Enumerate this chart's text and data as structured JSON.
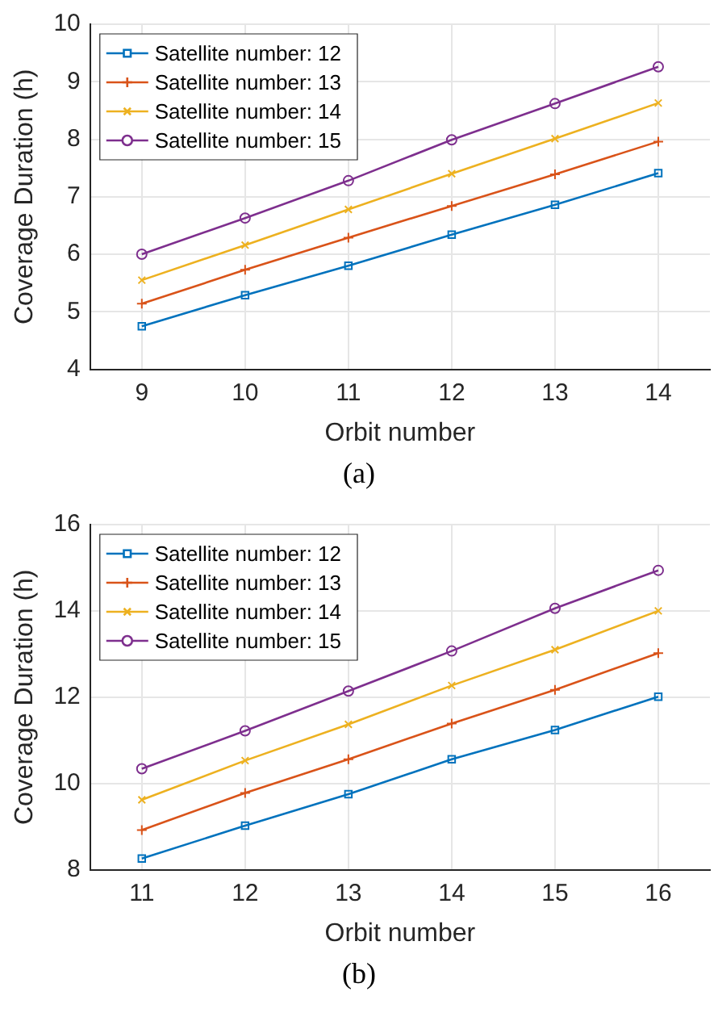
{
  "chart_data": [
    {
      "type": "line",
      "xlabel": "Orbit number",
      "ylabel": "Coverage Duration (h)",
      "annotations": [
        "(a)"
      ],
      "x": [
        9,
        10,
        11,
        12,
        13,
        14
      ],
      "xlim": [
        8.5,
        14.5
      ],
      "xticks": [
        9,
        10,
        11,
        12,
        13,
        14
      ],
      "ylim": [
        4,
        10
      ],
      "yticks": [
        4,
        5,
        6,
        7,
        8,
        9,
        10
      ],
      "grid": true,
      "legend": "top left",
      "series": [
        {
          "name": "Satellite number: 12",
          "color": "#0072bd",
          "marker": "square",
          "values": [
            4.75,
            5.29,
            5.8,
            6.34,
            6.86,
            7.41
          ]
        },
        {
          "name": "Satellite number: 13",
          "color": "#d95319",
          "marker": "cross",
          "values": [
            5.14,
            5.73,
            6.29,
            6.84,
            7.39,
            7.96
          ]
        },
        {
          "name": "Satellite number: 14",
          "color": "#edb120",
          "marker": "x",
          "values": [
            5.55,
            6.16,
            6.78,
            7.4,
            8.01,
            8.63
          ]
        },
        {
          "name": "Satellite number: 15",
          "color": "#7e2f8e",
          "marker": "circle",
          "values": [
            6.0,
            6.63,
            7.28,
            7.99,
            8.62,
            9.26
          ]
        }
      ]
    },
    {
      "type": "line",
      "xlabel": "Orbit number",
      "ylabel": "Coverage Duration (h)",
      "annotations": [
        "(b)"
      ],
      "x": [
        11,
        12,
        13,
        14,
        15,
        16
      ],
      "xlim": [
        10.5,
        16.5
      ],
      "xticks": [
        11,
        12,
        13,
        14,
        15,
        16
      ],
      "ylim": [
        8,
        16
      ],
      "yticks": [
        8,
        10,
        12,
        14,
        16
      ],
      "grid": true,
      "legend": "top left",
      "series": [
        {
          "name": "Satellite number: 12",
          "color": "#0072bd",
          "marker": "square",
          "values": [
            8.26,
            9.02,
            9.75,
            10.56,
            11.24,
            12.01
          ]
        },
        {
          "name": "Satellite number: 13",
          "color": "#d95319",
          "marker": "cross",
          "values": [
            8.92,
            9.78,
            10.56,
            11.39,
            12.17,
            13.02
          ]
        },
        {
          "name": "Satellite number: 14",
          "color": "#edb120",
          "marker": "x",
          "values": [
            9.62,
            10.53,
            11.37,
            12.27,
            13.1,
            14.0
          ]
        },
        {
          "name": "Satellite number: 15",
          "color": "#7e2f8e",
          "marker": "circle",
          "values": [
            10.34,
            11.22,
            12.14,
            13.07,
            14.06,
            14.94
          ]
        }
      ]
    }
  ]
}
